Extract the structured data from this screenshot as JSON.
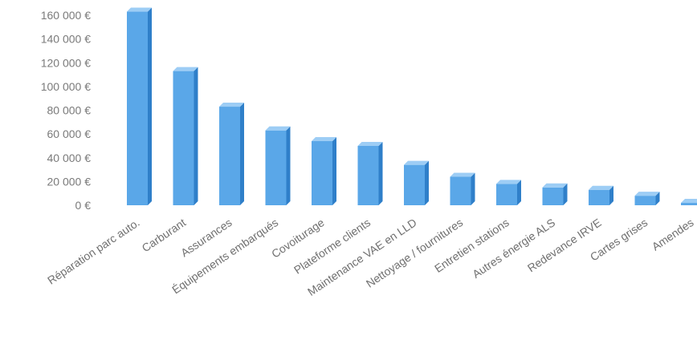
{
  "chart_data": {
    "type": "bar",
    "title": "",
    "xlabel": "",
    "ylabel": "",
    "categories": [
      "Réparation parc auto.",
      "Carburant",
      "Assurances",
      "Équipements embarqués",
      "Covoiturage",
      "Plateforme clients",
      "Maintenance VAE en LLD",
      "Nettoyage / fournitures",
      "Entretien stations",
      "Autres énergie ALS",
      "Redevance IRVE",
      "Cartes grises",
      "Amendes"
    ],
    "values": [
      163000,
      113000,
      83000,
      63000,
      54000,
      50000,
      34000,
      24000,
      18000,
      15000,
      13000,
      8000,
      2000
    ],
    "ylim": [
      0,
      160000
    ],
    "yticks": [
      0,
      20000,
      40000,
      60000,
      80000,
      100000,
      120000,
      140000,
      160000
    ],
    "ytick_labels": [
      "0 €",
      "20 000 €",
      "40 000 €",
      "60 000 €",
      "80 000 €",
      "100 000 €",
      "120 000 €",
      "140 000 €",
      "160 000 €"
    ],
    "grid": false,
    "legend": "none",
    "bar_color": "#5aa7e8",
    "bar_top_color": "#9dcdf5",
    "bar_side_color": "#2f7fc9"
  }
}
